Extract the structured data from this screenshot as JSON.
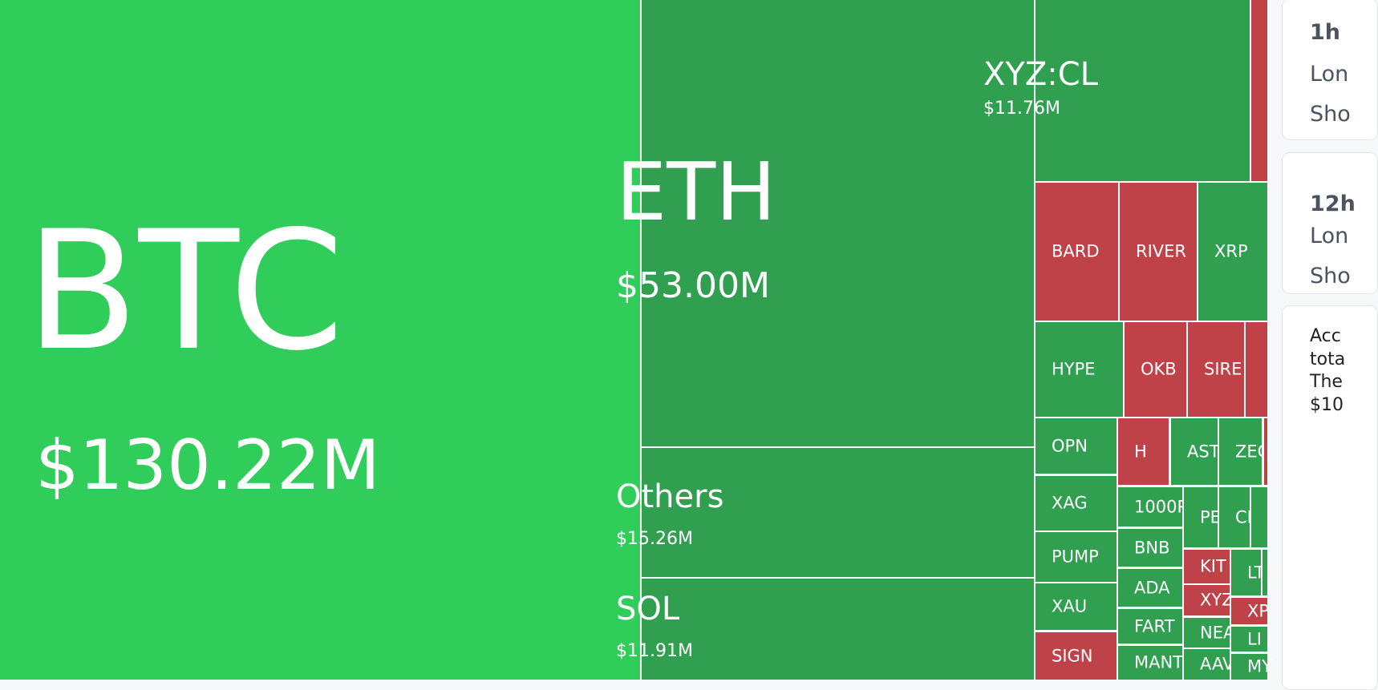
{
  "colors": {
    "btc": "#31cd5a",
    "up": "#319f50",
    "down": "#c04249"
  },
  "treemap": {
    "tiles": [
      {
        "name": "BTC",
        "value": "$130.22M",
        "trend": "btc"
      },
      {
        "name": "ETH",
        "value": "$53.00M",
        "trend": "up"
      },
      {
        "name": "Others",
        "value": "$15.26M",
        "trend": "up"
      },
      {
        "name": "SOL",
        "value": "$11.91M",
        "trend": "up"
      },
      {
        "name": "XYZ:CL",
        "value": "$11.76M",
        "trend": "up"
      },
      {
        "name": "",
        "trend": "down"
      },
      {
        "name": "BARD",
        "trend": "down"
      },
      {
        "name": "RIVER",
        "trend": "down"
      },
      {
        "name": "XRP",
        "trend": "up"
      },
      {
        "name": "HYPE",
        "trend": "up"
      },
      {
        "name": "OKB",
        "trend": "down"
      },
      {
        "name": "SIRE",
        "trend": "down"
      },
      {
        "name": "",
        "trend": "down"
      },
      {
        "name": "OPN",
        "trend": "up"
      },
      {
        "name": "XAG",
        "trend": "up"
      },
      {
        "name": "PUMP",
        "trend": "up"
      },
      {
        "name": "XAU",
        "trend": "up"
      },
      {
        "name": "SIGN",
        "trend": "down"
      },
      {
        "name": "H",
        "trend": "down"
      },
      {
        "name": "AST",
        "trend": "up"
      },
      {
        "name": "ZEC",
        "trend": "up"
      },
      {
        "name": "",
        "trend": "down"
      },
      {
        "name": "1000P",
        "trend": "up"
      },
      {
        "name": "BNB",
        "trend": "up"
      },
      {
        "name": "ADA",
        "trend": "up"
      },
      {
        "name": "FART",
        "trend": "up"
      },
      {
        "name": "MANT",
        "trend": "up"
      },
      {
        "name": "PE",
        "trend": "up"
      },
      {
        "name": "CI",
        "trend": "up"
      },
      {
        "name": "",
        "trend": "up"
      },
      {
        "name": "KIT",
        "trend": "down"
      },
      {
        "name": "XYZ",
        "trend": "down"
      },
      {
        "name": "NEA",
        "trend": "up"
      },
      {
        "name": "AAV",
        "trend": "up"
      },
      {
        "name": "LT",
        "trend": "up"
      },
      {
        "name": "",
        "trend": "up"
      },
      {
        "name": "XP",
        "trend": "down"
      },
      {
        "name": "LI",
        "trend": "up"
      },
      {
        "name": "MY",
        "trend": "up"
      }
    ]
  },
  "sidebar": {
    "card_1h": {
      "title": "1h",
      "long": "Lon",
      "short": "Sho"
    },
    "card_12h": {
      "title": "12h",
      "long": "Lon",
      "short": "Sho"
    },
    "note": {
      "lines": [
        "Acc",
        "tota",
        "The",
        "$10"
      ]
    }
  }
}
